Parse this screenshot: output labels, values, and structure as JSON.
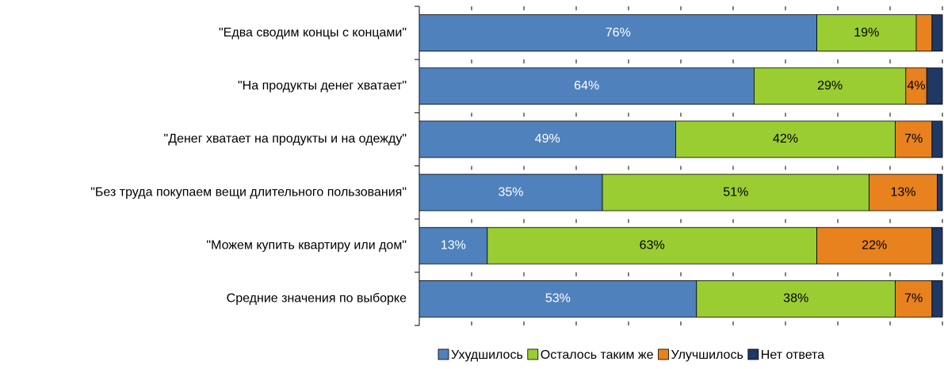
{
  "chart_data": {
    "type": "stacked-bar-horizontal",
    "categories": [
      "\"Едва сводим концы с концами\"",
      "\"На продукты денег хватает\"",
      "\"Денег хватает на продукты и на одежду\"",
      "\"Без труда покупаем вещи длительного пользования\"",
      "\"Можем купить квартиру или дом\"",
      "Средние значения по выборке"
    ],
    "series": [
      {
        "name": "Ухудшилось",
        "color": "#4f81bd",
        "values": [
          76,
          64,
          49,
          35,
          13,
          53
        ],
        "value_labels": [
          "76%",
          "64%",
          "49%",
          "35%",
          "13%",
          "53%"
        ]
      },
      {
        "name": "Осталось таким же",
        "color": "#9acd32",
        "values": [
          19,
          29,
          42,
          51,
          63,
          38
        ],
        "value_labels": [
          "19%",
          "29%",
          "42%",
          "51%",
          "63%",
          "38%"
        ]
      },
      {
        "name": "Улучшилось",
        "color": "#e8821e",
        "values": [
          3,
          4,
          7,
          13,
          22,
          7
        ],
        "value_labels": [
          null,
          "4%",
          "7%",
          "13%",
          "22%",
          "7%"
        ]
      },
      {
        "name": "Нет ответа",
        "color": "#1f3864",
        "values": [
          2,
          3,
          2,
          1,
          2,
          2
        ],
        "value_labels": [
          null,
          null,
          null,
          null,
          null,
          null
        ]
      }
    ],
    "xlim": [
      0,
      100
    ],
    "xticks": [
      0,
      10,
      20,
      30,
      40,
      50,
      60,
      70,
      80,
      90,
      100
    ]
  }
}
